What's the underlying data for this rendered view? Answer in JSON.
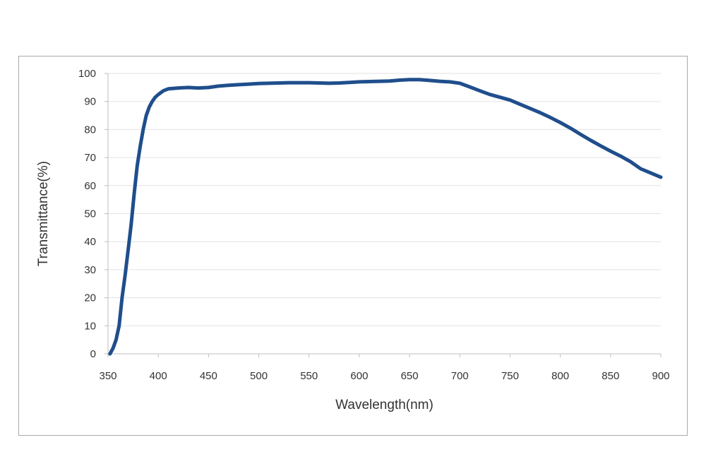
{
  "chart_data": {
    "type": "line",
    "title": "",
    "xlabel": "Wavelength(nm)",
    "ylabel": "Transmittance(%)",
    "xlim": [
      350,
      900
    ],
    "ylim": [
      0,
      100
    ],
    "x_ticks": [
      350,
      400,
      450,
      500,
      550,
      600,
      650,
      700,
      750,
      800,
      850,
      900
    ],
    "y_ticks": [
      0,
      10,
      20,
      30,
      40,
      50,
      60,
      70,
      80,
      90,
      100
    ],
    "grid": "horizontal",
    "legend": "none",
    "series": [
      {
        "color": "#1f4e8c",
        "x": [
          352,
          355,
          358,
          361,
          364,
          367,
          370,
          373,
          376,
          379,
          382,
          385,
          388,
          391,
          394,
          397,
          400,
          405,
          410,
          420,
          430,
          440,
          450,
          460,
          470,
          480,
          490,
          500,
          510,
          520,
          530,
          540,
          550,
          560,
          570,
          580,
          590,
          600,
          610,
          620,
          630,
          640,
          650,
          660,
          670,
          680,
          690,
          700,
          710,
          720,
          730,
          740,
          750,
          760,
          770,
          780,
          790,
          800,
          810,
          820,
          830,
          840,
          850,
          860,
          870,
          880,
          890,
          900
        ],
        "y": [
          0,
          2,
          5,
          10,
          20,
          28,
          37,
          46,
          57,
          67,
          74,
          80,
          85,
          88,
          90,
          91.5,
          92.5,
          93.8,
          94.5,
          94.8,
          95.0,
          94.8,
          95.0,
          95.5,
          95.8,
          96.0,
          96.2,
          96.4,
          96.5,
          96.6,
          96.7,
          96.7,
          96.7,
          96.6,
          96.5,
          96.6,
          96.8,
          97.0,
          97.1,
          97.2,
          97.3,
          97.6,
          97.8,
          97.8,
          97.5,
          97.2,
          97.0,
          96.5,
          95.2,
          93.8,
          92.5,
          91.5,
          90.5,
          89.0,
          87.5,
          86.0,
          84.3,
          82.5,
          80.5,
          78.3,
          76.2,
          74.2,
          72.3,
          70.5,
          68.5,
          66.0,
          64.5,
          63.0
        ]
      }
    ]
  }
}
